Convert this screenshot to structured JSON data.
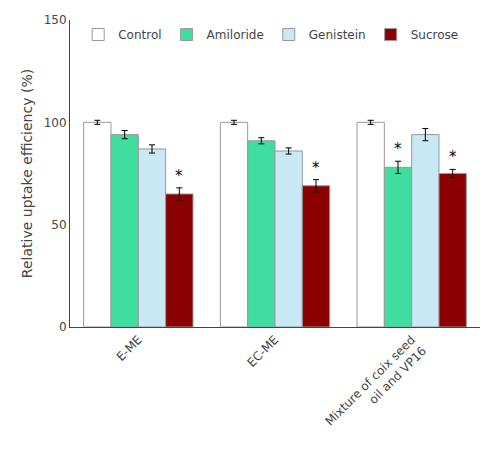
{
  "chart_data": {
    "type": "bar",
    "categories": [
      "E-ME",
      "EC-ME",
      "Mixture of coix seed\noil and VP16"
    ],
    "series": [
      {
        "name": "Control",
        "color": "#FFFFFF",
        "values": [
          100,
          100,
          100
        ],
        "errors": [
          1.0,
          1.0,
          1.0
        ]
      },
      {
        "name": "Amiloride",
        "color": "#40DDA0",
        "values": [
          94,
          91,
          78
        ],
        "errors": [
          2.0,
          1.5,
          3.0
        ]
      },
      {
        "name": "Genistein",
        "color": "#C8E8F5",
        "values": [
          87,
          86,
          94
        ],
        "errors": [
          2.0,
          1.5,
          3.0
        ]
      },
      {
        "name": "Sucrose",
        "color": "#8B0000",
        "values": [
          65,
          69,
          75
        ],
        "errors": [
          3.0,
          3.0,
          2.0
        ]
      }
    ],
    "ylabel": "Relative uptake efficiency (%)",
    "ylim": [
      0,
      150
    ],
    "yticks": [
      0,
      50,
      100,
      150
    ],
    "grid": false,
    "legend": "upper left",
    "annotations": [
      {
        "text": "*",
        "category": "E-ME",
        "series": "Sucrose"
      },
      {
        "text": "*",
        "category": "EC-ME",
        "series": "Sucrose"
      },
      {
        "text": "*",
        "category": "Mixture of coix seed\noil and VP16",
        "series": "Amiloride"
      },
      {
        "text": "*",
        "category": "Mixture of coix seed\noil and VP16",
        "series": "Sucrose"
      }
    ]
  }
}
